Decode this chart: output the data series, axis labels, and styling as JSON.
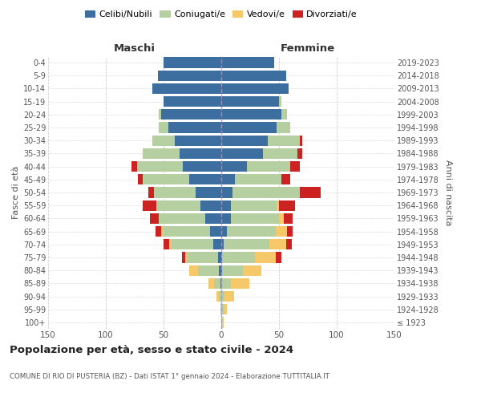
{
  "age_groups": [
    "100+",
    "95-99",
    "90-94",
    "85-89",
    "80-84",
    "75-79",
    "70-74",
    "65-69",
    "60-64",
    "55-59",
    "50-54",
    "45-49",
    "40-44",
    "35-39",
    "30-34",
    "25-29",
    "20-24",
    "15-19",
    "10-14",
    "5-9",
    "0-4"
  ],
  "birth_years": [
    "≤ 1923",
    "1924-1928",
    "1929-1933",
    "1934-1938",
    "1939-1943",
    "1944-1948",
    "1949-1953",
    "1954-1958",
    "1959-1963",
    "1964-1968",
    "1969-1973",
    "1974-1978",
    "1979-1983",
    "1984-1988",
    "1989-1993",
    "1994-1998",
    "1999-2003",
    "2004-2008",
    "2009-2013",
    "2014-2018",
    "2019-2023"
  ],
  "colors": {
    "celibi": "#3c6e9f",
    "coniugati": "#b5cfa0",
    "vedovi": "#f5c96a",
    "divorziati": "#cc2222"
  },
  "m_cel": [
    0,
    0,
    0,
    1,
    2,
    3,
    7,
    10,
    14,
    18,
    22,
    28,
    33,
    36,
    40,
    46,
    52,
    50,
    60,
    55,
    50
  ],
  "m_con": [
    0,
    0,
    2,
    5,
    18,
    26,
    36,
    40,
    40,
    38,
    36,
    40,
    40,
    32,
    20,
    8,
    2,
    0,
    0,
    0,
    0
  ],
  "m_ved": [
    0,
    1,
    2,
    5,
    8,
    2,
    2,
    2,
    0,
    0,
    0,
    0,
    0,
    0,
    0,
    0,
    0,
    0,
    0,
    0,
    0
  ],
  "m_div": [
    0,
    0,
    0,
    0,
    0,
    3,
    5,
    5,
    8,
    12,
    5,
    4,
    5,
    0,
    0,
    0,
    0,
    0,
    0,
    0,
    0
  ],
  "f_cel": [
    0,
    0,
    0,
    0,
    1,
    1,
    2,
    5,
    8,
    8,
    10,
    12,
    22,
    36,
    40,
    48,
    52,
    50,
    58,
    56,
    46
  ],
  "f_con": [
    1,
    2,
    3,
    8,
    18,
    28,
    40,
    42,
    42,
    40,
    58,
    40,
    38,
    30,
    28,
    12,
    5,
    2,
    0,
    0,
    0
  ],
  "f_ved": [
    1,
    3,
    8,
    16,
    16,
    18,
    14,
    10,
    4,
    2,
    0,
    0,
    0,
    0,
    0,
    0,
    0,
    0,
    0,
    0,
    0
  ],
  "f_div": [
    0,
    0,
    0,
    0,
    0,
    5,
    5,
    5,
    8,
    14,
    18,
    8,
    8,
    4,
    2,
    0,
    0,
    0,
    0,
    0,
    0
  ],
  "title": "Popolazione per età, sesso e stato civile - 2024",
  "subtitle": "COMUNE DI RIO DI PUSTERIA (BZ) - Dati ISTAT 1° gennaio 2024 - Elaborazione TUTTITALIA.IT",
  "xlabel_left": "Maschi",
  "xlabel_right": "Femmine",
  "ylabel_left": "Fasce di età",
  "ylabel_right": "Anni di nascita",
  "xlim": 150,
  "legend_labels": [
    "Celibi/Nubili",
    "Coniugati/e",
    "Vedovi/e",
    "Divorziati/e"
  ],
  "bg_color": "#ffffff",
  "grid_color": "#cccccc"
}
